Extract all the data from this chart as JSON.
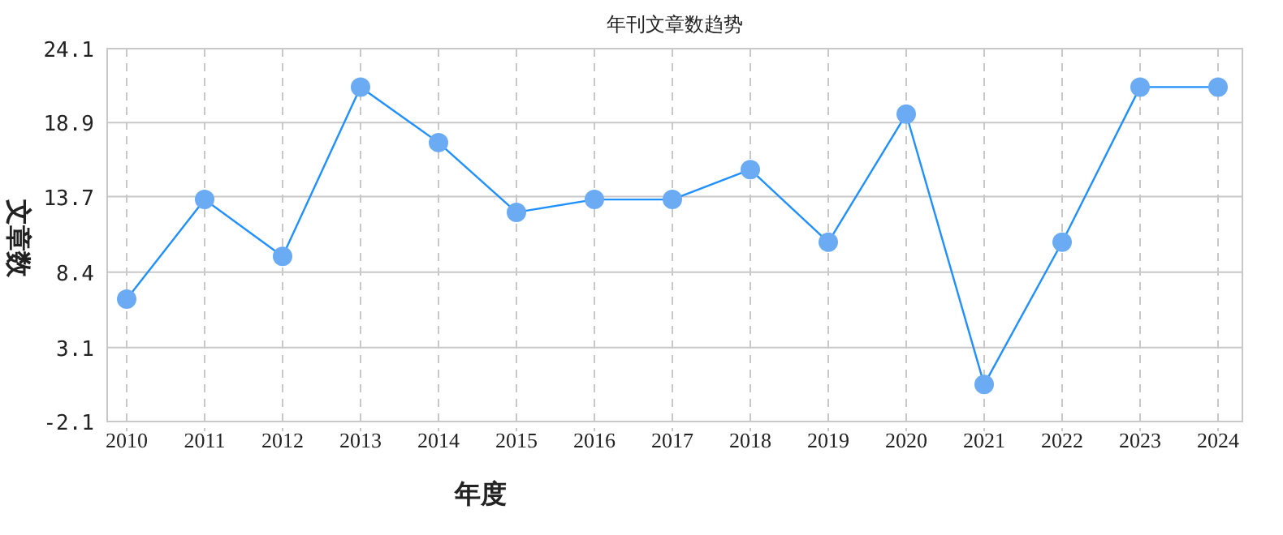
{
  "chart_data": {
    "type": "line",
    "title": "年刊文章数趋势",
    "xlabel": "年度",
    "ylabel": "文章数",
    "categories": [
      "2010",
      "2011",
      "2012",
      "2013",
      "2014",
      "2015",
      "2016",
      "2017",
      "2018",
      "2019",
      "2020",
      "2021",
      "2022",
      "2023",
      "2024"
    ],
    "series": [
      {
        "color": "#1e90ff",
        "values": [
          6.5,
          13.5,
          9.5,
          21.4,
          17.5,
          12.6,
          13.5,
          13.5,
          15.6,
          10.5,
          19.5,
          0.5,
          10.5,
          21.4,
          21.4
        ]
      }
    ],
    "ylim": [
      -2.1,
      24.1
    ],
    "yticks": [
      -2.1,
      3.1,
      8.4,
      13.7,
      18.9,
      24.1
    ],
    "grid": true,
    "marker": "circle",
    "line_style": "solid"
  }
}
